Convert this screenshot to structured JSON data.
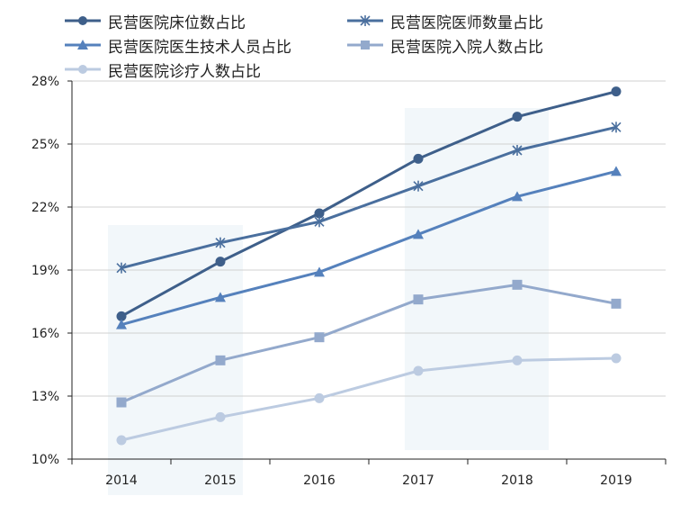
{
  "chart_data": {
    "type": "line",
    "categories": [
      "2014",
      "2015",
      "2016",
      "2017",
      "2018",
      "2019"
    ],
    "ylim": [
      10,
      28
    ],
    "yticks": [
      10,
      13,
      16,
      19,
      22,
      25,
      28
    ],
    "ytick_labels": [
      "10%",
      "13%",
      "16%",
      "19%",
      "22%",
      "25%",
      "28%"
    ],
    "grid": "horizontal",
    "legend_position": "top",
    "series": [
      {
        "name": "民营医院床位数占比",
        "values": [
          16.8,
          19.4,
          21.7,
          24.3,
          26.3,
          27.5
        ],
        "color": "#3e5f8a",
        "marker": "circle"
      },
      {
        "name": "民营医院医师数量占比",
        "values": [
          19.1,
          20.3,
          21.3,
          23.0,
          24.7,
          25.8
        ],
        "color": "#4a6f9e",
        "marker": "star"
      },
      {
        "name": "民营医院医生技术人员占比",
        "values": [
          16.4,
          17.7,
          18.9,
          20.7,
          22.5,
          23.7
        ],
        "color": "#5581bc",
        "marker": "triangle"
      },
      {
        "name": "民营医院入院人数占比",
        "values": [
          12.7,
          14.7,
          15.8,
          17.6,
          18.3,
          17.4
        ],
        "color": "#93a9cc",
        "marker": "square"
      },
      {
        "name": "民营医院诊疗人数占比",
        "values": [
          10.9,
          12.0,
          12.9,
          14.2,
          14.7,
          14.8
        ],
        "color": "#bccbe1",
        "marker": "circle"
      }
    ]
  }
}
